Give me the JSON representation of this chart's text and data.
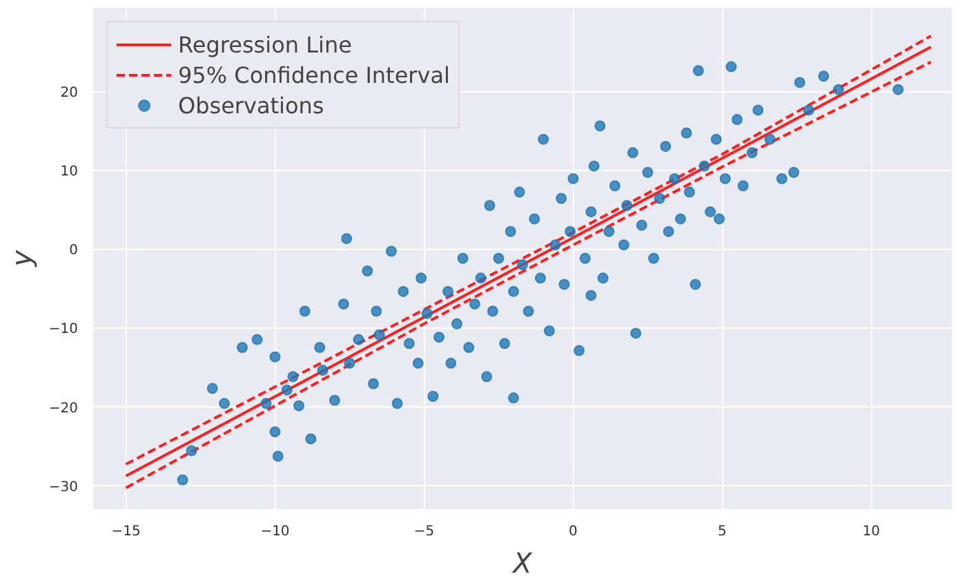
{
  "chart_data": {
    "type": "scatter",
    "xlabel": "X",
    "ylabel": "y",
    "xlim": [
      -16.1,
      12.7
    ],
    "ylim": [
      -33,
      30.6
    ],
    "xticks": [
      -15,
      -10,
      -5,
      0,
      5,
      10
    ],
    "yticks": [
      -30,
      -20,
      -10,
      0,
      10,
      20
    ],
    "grid": true,
    "legend": "top left",
    "series": [
      {
        "name": "Regression Line",
        "type": "line",
        "line_style": "solid",
        "color": "#ff2020",
        "x": [
          -15,
          12
        ],
        "values": [
          -28.8,
          25.6
        ]
      },
      {
        "name": "95% Confidence Interval",
        "type": "line",
        "line_style": "dashed",
        "color": "#ff2020",
        "x": [
          -15,
          -5,
          0,
          5,
          12
        ],
        "values": [
          -27.3,
          -7.7,
          2.1,
          12.0,
          27.0
        ]
      },
      {
        "type": "line",
        "line_style": "dashed",
        "color": "#ff2020",
        "x": [
          -15,
          -5,
          0,
          5,
          12
        ],
        "values": [
          -30.3,
          -9.5,
          0.5,
          10.4,
          23.7
        ]
      },
      {
        "name": "Observations",
        "marker": "circle",
        "color": "#1f77b4",
        "x": [
          -13.1,
          -12.8,
          -12.1,
          -11.7,
          -11.1,
          -10,
          -10,
          -9.9,
          -10.6,
          -10.3,
          -9.6,
          -9.4,
          -9.0,
          -8.8,
          -8.5,
          -8.4,
          -8.0,
          -9.2,
          -7.7,
          -7.6,
          -7.5,
          -7.2,
          -6.9,
          -6.7,
          -6.6,
          -6.5,
          -6.1,
          -5.9,
          -5.7,
          -5.5,
          -5.2,
          -5.1,
          -4.9,
          -4.7,
          -4.5,
          -4.2,
          -4.1,
          -3.9,
          -3.7,
          -3.5,
          -3.3,
          -3.1,
          -2.9,
          -2.8,
          -2.7,
          -2.5,
          -2.3,
          -2.1,
          -2.0,
          -1.8,
          -1.7,
          -1.5,
          -1.3,
          -1.1,
          -1.0,
          -0.8,
          -0.6,
          -0.4,
          -0.3,
          -0.1,
          0.0,
          0.2,
          0.4,
          0.6,
          0.7,
          0.9,
          1.0,
          1.2,
          1.4,
          1.7,
          1.8,
          2.0,
          2.1,
          2.3,
          2.5,
          2.7,
          2.9,
          3.1,
          3.2,
          3.4,
          3.6,
          3.8,
          3.9,
          4.1,
          4.2,
          4.4,
          4.6,
          4.8,
          4.9,
          5.1,
          5.3,
          5.5,
          5.7,
          6.0,
          6.2,
          6.6,
          7.0,
          7.4,
          7.6,
          7.9,
          8.4,
          8.9,
          10.9,
          0.6,
          -2.0
        ],
        "values": [
          -29.3,
          -25.6,
          -17.7,
          -19.6,
          -12.5,
          -13.7,
          -23.2,
          -26.3,
          -11.5,
          -19.6,
          -17.9,
          -16.2,
          -7.9,
          -24.1,
          -12.5,
          -15.4,
          -19.2,
          -19.9,
          -7.0,
          1.3,
          -14.5,
          -11.5,
          -2.8,
          -17.1,
          -7.9,
          -10.9,
          -0.3,
          -19.6,
          -5.4,
          -12.0,
          -14.5,
          -3.7,
          -8.2,
          -18.7,
          -11.2,
          -5.4,
          -14.5,
          -9.5,
          -1.2,
          -12.5,
          -7.0,
          -3.7,
          -16.2,
          5.5,
          -7.9,
          -1.2,
          -12.0,
          2.2,
          -5.4,
          7.2,
          -2.0,
          -7.9,
          3.8,
          -3.7,
          13.9,
          -10.4,
          0.5,
          6.4,
          -4.5,
          2.2,
          8.9,
          -12.9,
          -1.2,
          4.7,
          10.5,
          15.6,
          -3.7,
          2.2,
          8.0,
          0.5,
          5.5,
          12.2,
          -10.7,
          3.0,
          9.7,
          -1.2,
          6.4,
          13.0,
          2.2,
          8.9,
          3.8,
          14.7,
          7.2,
          -4.5,
          22.6,
          10.5,
          4.7,
          13.9,
          3.8,
          8.9,
          23.1,
          16.4,
          8.0,
          12.2,
          17.6,
          13.9,
          8.9,
          9.7,
          21.1,
          17.6,
          21.9,
          20.2,
          20.2,
          -5.9,
          -18.9
        ]
      }
    ]
  }
}
